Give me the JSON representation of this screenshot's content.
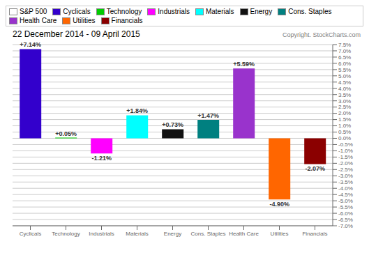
{
  "chart_data": {
    "type": "bar",
    "title": "22 December 2014 - 09 April 2015",
    "subtitle": "Copyright. StockCharts.com",
    "categories": [
      "Cyclicals",
      "Technology",
      "Industrials",
      "Materials",
      "Energy",
      "Cons. Staples",
      "Health Care",
      "Utilities",
      "Financials"
    ],
    "values": [
      7.14,
      0.05,
      -1.21,
      1.84,
      0.73,
      1.47,
      5.59,
      -4.9,
      -2.07
    ],
    "value_labels": [
      "+7.14%",
      "+0.05%",
      "-1.21%",
      "+1.84%",
      "+0.73%",
      "+1.47%",
      "+5.59%",
      "-4.90%",
      "-2.07%"
    ],
    "data_labels": true,
    "colors": [
      "#3300cc",
      "#00cc00",
      "#ff00ff",
      "#00ffff",
      "#111111",
      "#008080",
      "#9933cc",
      "#ff6600",
      "#8b0000"
    ],
    "ylim": [
      -7.0,
      7.5
    ],
    "yticks": [
      {
        "value": -7.0,
        "label": "-7.0%"
      },
      {
        "value": -6.5,
        "label": "-6.5%"
      },
      {
        "value": -6.0,
        "label": "-6.0%"
      },
      {
        "value": -5.5,
        "label": "-5.5%"
      },
      {
        "value": -5.0,
        "label": "-5.0%"
      },
      {
        "value": -4.5,
        "label": "-4.5%"
      },
      {
        "value": -4.0,
        "label": "-4.0%"
      },
      {
        "value": -3.5,
        "label": "-3.5%"
      },
      {
        "value": -3.0,
        "label": "-3.0%"
      },
      {
        "value": -2.5,
        "label": "-2.5%"
      },
      {
        "value": -2.0,
        "label": "-2.0%"
      },
      {
        "value": -1.5,
        "label": "-1.5%"
      },
      {
        "value": -1.0,
        "label": "-1.0%"
      },
      {
        "value": -0.5,
        "label": "-0.5%"
      },
      {
        "value": 0.0,
        "label": "0.0%"
      },
      {
        "value": 0.5,
        "label": "0.5%"
      },
      {
        "value": 1.0,
        "label": "1.0%"
      },
      {
        "value": 1.5,
        "label": "1.5%"
      },
      {
        "value": 2.0,
        "label": "2.0%"
      },
      {
        "value": 2.5,
        "label": "2.5%"
      },
      {
        "value": 3.0,
        "label": "3.0%"
      },
      {
        "value": 3.5,
        "label": "3.5%"
      },
      {
        "value": 4.0,
        "label": "4.0%"
      },
      {
        "value": 4.5,
        "label": "4.5%"
      },
      {
        "value": 5.0,
        "label": "5.0%"
      },
      {
        "value": 5.5,
        "label": "5.5%"
      },
      {
        "value": 6.0,
        "label": "6.0%"
      },
      {
        "value": 6.5,
        "label": "6.5%"
      },
      {
        "value": 7.0,
        "label": "7.0%"
      },
      {
        "value": 7.5,
        "label": "7.5%"
      }
    ],
    "grid": true,
    "legend": "upper left",
    "legend_entries": [
      {
        "name": "S&P 500",
        "color": "#ffffff"
      },
      {
        "name": "Cyclicals",
        "color": "#3300cc"
      },
      {
        "name": "Technology",
        "color": "#00cc00"
      },
      {
        "name": "Industrials",
        "color": "#ff00ff"
      },
      {
        "name": "Materials",
        "color": "#00ffff"
      },
      {
        "name": "Energy",
        "color": "#111111"
      },
      {
        "name": "Cons. Staples",
        "color": "#008080"
      },
      {
        "name": "Health Care",
        "color": "#9933cc"
      },
      {
        "name": "Utilities",
        "color": "#ff6600"
      },
      {
        "name": "Financials",
        "color": "#8b0000"
      }
    ]
  }
}
